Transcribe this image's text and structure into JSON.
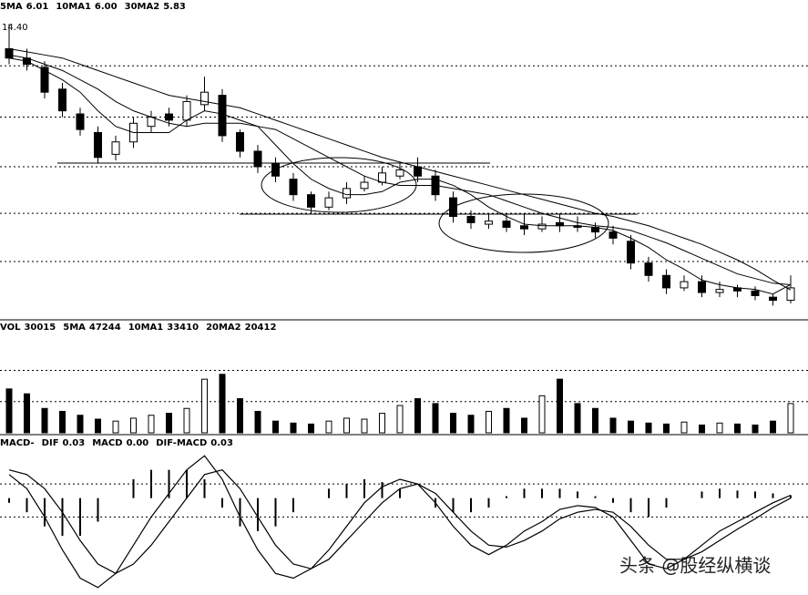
{
  "chart_data": [
    {
      "type": "candlestick",
      "open": [
        13.6,
        13.3,
        13.0,
        12.3,
        11.5,
        10.9,
        10.2,
        10.6,
        11.1,
        11.5,
        11.3,
        11.8,
        12.1,
        10.9,
        10.3,
        9.9,
        9.4,
        8.9,
        8.5,
        8.8,
        9.1,
        9.3,
        9.5,
        9.8,
        9.5,
        8.8,
        8.2,
        7.95,
        8.05,
        7.9,
        7.8,
        8.0,
        7.9,
        7.85,
        7.7,
        7.4,
        6.7,
        6.3,
        5.9,
        6.1,
        5.75,
        5.9,
        5.8,
        5.6,
        5.5
      ],
      "high": [
        14.4,
        13.6,
        13.2,
        12.5,
        11.7,
        11.1,
        10.8,
        11.4,
        11.6,
        11.7,
        12.1,
        12.7,
        12.3,
        11.0,
        10.5,
        10.1,
        9.6,
        9.0,
        9.0,
        9.3,
        9.5,
        9.8,
        9.9,
        10.1,
        9.7,
        9.0,
        8.4,
        8.3,
        8.3,
        8.3,
        8.2,
        8.3,
        8.2,
        8.0,
        7.9,
        7.6,
        6.9,
        6.5,
        6.3,
        6.3,
        6.1,
        6.0,
        5.95,
        5.7,
        6.3
      ],
      "low": [
        13.1,
        12.9,
        12.0,
        11.4,
        10.8,
        9.9,
        10.0,
        10.4,
        10.9,
        11.1,
        11.1,
        11.6,
        10.6,
        10.1,
        9.6,
        9.3,
        8.7,
        8.3,
        8.4,
        8.6,
        9.0,
        9.2,
        9.4,
        9.3,
        8.7,
        8.0,
        7.8,
        7.8,
        7.7,
        7.6,
        7.7,
        7.7,
        7.7,
        7.5,
        7.3,
        6.5,
        6.1,
        5.7,
        5.8,
        5.6,
        5.6,
        5.6,
        5.5,
        5.33,
        5.4
      ],
      "close": [
        13.3,
        13.1,
        12.2,
        11.6,
        11.0,
        10.1,
        10.6,
        11.2,
        11.4,
        11.3,
        11.9,
        12.2,
        10.8,
        10.3,
        9.8,
        9.5,
        8.9,
        8.5,
        8.8,
        9.1,
        9.3,
        9.6,
        9.7,
        9.5,
        8.9,
        8.2,
        8.0,
        8.05,
        7.85,
        7.8,
        7.95,
        7.9,
        7.85,
        7.7,
        7.5,
        6.7,
        6.3,
        5.9,
        6.1,
        5.75,
        5.85,
        5.8,
        5.65,
        5.5,
        5.9
      ],
      "series": [
        {
          "name": "5MA",
          "color": "#000000",
          "legend_value": 6.01,
          "values": [
            13.3,
            13.2,
            12.9,
            12.6,
            12.2,
            11.6,
            11.1,
            10.9,
            10.9,
            10.9,
            11.3,
            11.6,
            11.5,
            11.3,
            11.1,
            10.5,
            9.9,
            9.4,
            9.1,
            8.9,
            8.9,
            9.0,
            9.3,
            9.4,
            9.4,
            9.2,
            8.9,
            8.5,
            8.2,
            7.95,
            7.9,
            7.9,
            7.9,
            7.85,
            7.75,
            7.5,
            7.2,
            6.8,
            6.5,
            6.15,
            6.0,
            5.9,
            5.85,
            5.7,
            6.01
          ]
        },
        {
          "name": "10MA1",
          "color": "#000000",
          "legend_value": {
            "value": 6,
            "label": "6.00"
          },
          "values": [
            13.4,
            13.3,
            13.1,
            12.9,
            12.6,
            12.3,
            11.9,
            11.6,
            11.4,
            11.2,
            11.1,
            11.2,
            11.2,
            11.2,
            11.1,
            11.0,
            10.7,
            10.4,
            10.1,
            9.8,
            9.5,
            9.3,
            9.2,
            9.2,
            9.2,
            9.1,
            9.0,
            8.9,
            8.7,
            8.5,
            8.3,
            8.15,
            8.0,
            7.9,
            7.85,
            7.75,
            7.55,
            7.35,
            7.1,
            6.85,
            6.6,
            6.35,
            6.2,
            6.05,
            6.0
          ]
        },
        {
          "name": "30MA2",
          "color": "#000000",
          "legend_value": 5.83,
          "values": [
            13.6,
            13.5,
            13.4,
            13.3,
            13.1,
            12.9,
            12.7,
            12.5,
            12.3,
            12.1,
            12.0,
            11.9,
            11.8,
            11.7,
            11.5,
            11.3,
            11.1,
            10.9,
            10.7,
            10.5,
            10.3,
            10.1,
            9.95,
            9.8,
            9.65,
            9.5,
            9.35,
            9.2,
            9.05,
            8.9,
            8.75,
            8.6,
            8.45,
            8.3,
            8.2,
            8.05,
            7.9,
            7.7,
            7.5,
            7.3,
            7.05,
            6.8,
            6.5,
            6.15,
            5.83
          ]
        }
      ],
      "annotations": [
        {
          "value": 14.4,
          "label": "14.40"
        },
        {
          "value": 5.33
        }
      ],
      "ylim": [
        4.9,
        14.7
      ],
      "yticks": [
        6.75,
        8.3,
        9.8,
        11.4,
        13.05
      ],
      "grid": true
    },
    {
      "type": "bar",
      "values": [
        45000,
        40000,
        25000,
        22000,
        18000,
        14000,
        12000,
        15000,
        18000,
        20000,
        25000,
        55000,
        60000,
        35000,
        22000,
        12000,
        10000,
        9000,
        12000,
        15000,
        14000,
        20000,
        28000,
        35000,
        30000,
        20000,
        18000,
        22000,
        25000,
        15000,
        38000,
        55000,
        30000,
        25000,
        15000,
        12000,
        10000,
        9000,
        11000,
        8000,
        10000,
        9000,
        8000,
        12000,
        30015
      ],
      "legend": [
        {
          "name": "VOL",
          "value": 30015
        },
        {
          "name": "5MA",
          "value": 47244
        },
        {
          "name": "10MA1",
          "value": 33410
        },
        {
          "name": "20MA2",
          "value": 20412
        }
      ],
      "ylim": [
        0,
        100000
      ],
      "yticks": [
        32000,
        64000
      ],
      "grid": true
    },
    {
      "type": "macd",
      "title": "MACD-",
      "series": [
        {
          "name": "DIF",
          "legend_value": 0.03,
          "values": [
            0.25,
            0.1,
            -0.2,
            -0.55,
            -0.85,
            -0.95,
            -0.8,
            -0.5,
            -0.2,
            0.05,
            0.3,
            0.45,
            0.2,
            -0.2,
            -0.55,
            -0.8,
            -0.85,
            -0.75,
            -0.55,
            -0.3,
            -0.05,
            0.12,
            0.2,
            0.15,
            -0.05,
            -0.3,
            -0.5,
            -0.6,
            -0.5,
            -0.35,
            -0.25,
            -0.12,
            -0.08,
            -0.1,
            -0.2,
            -0.45,
            -0.7,
            -0.75,
            -0.65,
            -0.5,
            -0.35,
            -0.25,
            -0.15,
            -0.05,
            0.03
          ]
        },
        {
          "name": "MACD",
          "legend_value": {
            "value": 0,
            "label": "0.00"
          },
          "values": [
            0.3,
            0.25,
            0.1,
            -0.15,
            -0.45,
            -0.7,
            -0.8,
            -0.7,
            -0.5,
            -0.25,
            0.0,
            0.25,
            0.3,
            0.1,
            -0.2,
            -0.5,
            -0.7,
            -0.75,
            -0.65,
            -0.45,
            -0.25,
            -0.05,
            0.1,
            0.15,
            0.05,
            -0.15,
            -0.35,
            -0.5,
            -0.52,
            -0.45,
            -0.35,
            -0.22,
            -0.15,
            -0.12,
            -0.15,
            -0.3,
            -0.5,
            -0.65,
            -0.65,
            -0.57,
            -0.45,
            -0.33,
            -0.22,
            -0.1,
            0.0
          ]
        },
        {
          "name": "DIF-MACD",
          "legend_value": 0.03,
          "values": [
            -0.05,
            -0.15,
            -0.3,
            -0.4,
            -0.4,
            -0.25,
            0,
            0.2,
            0.3,
            0.3,
            0.3,
            0.2,
            -0.1,
            -0.3,
            -0.35,
            -0.3,
            -0.15,
            0,
            0.1,
            0.15,
            0.2,
            0.17,
            0.1,
            0,
            -0.1,
            -0.15,
            -0.15,
            -0.1,
            0.02,
            0.1,
            0.1,
            0.1,
            0.07,
            0.02,
            -0.05,
            -0.15,
            -0.2,
            -0.1,
            0,
            0.07,
            0.1,
            0.08,
            0.07,
            0.05,
            0.03
          ]
        }
      ],
      "ylim": [
        -1,
        0.5
      ],
      "yticks": [
        -0.2,
        0.15
      ],
      "grid": true
    }
  ],
  "watermark": "头条 @股经纵横谈"
}
